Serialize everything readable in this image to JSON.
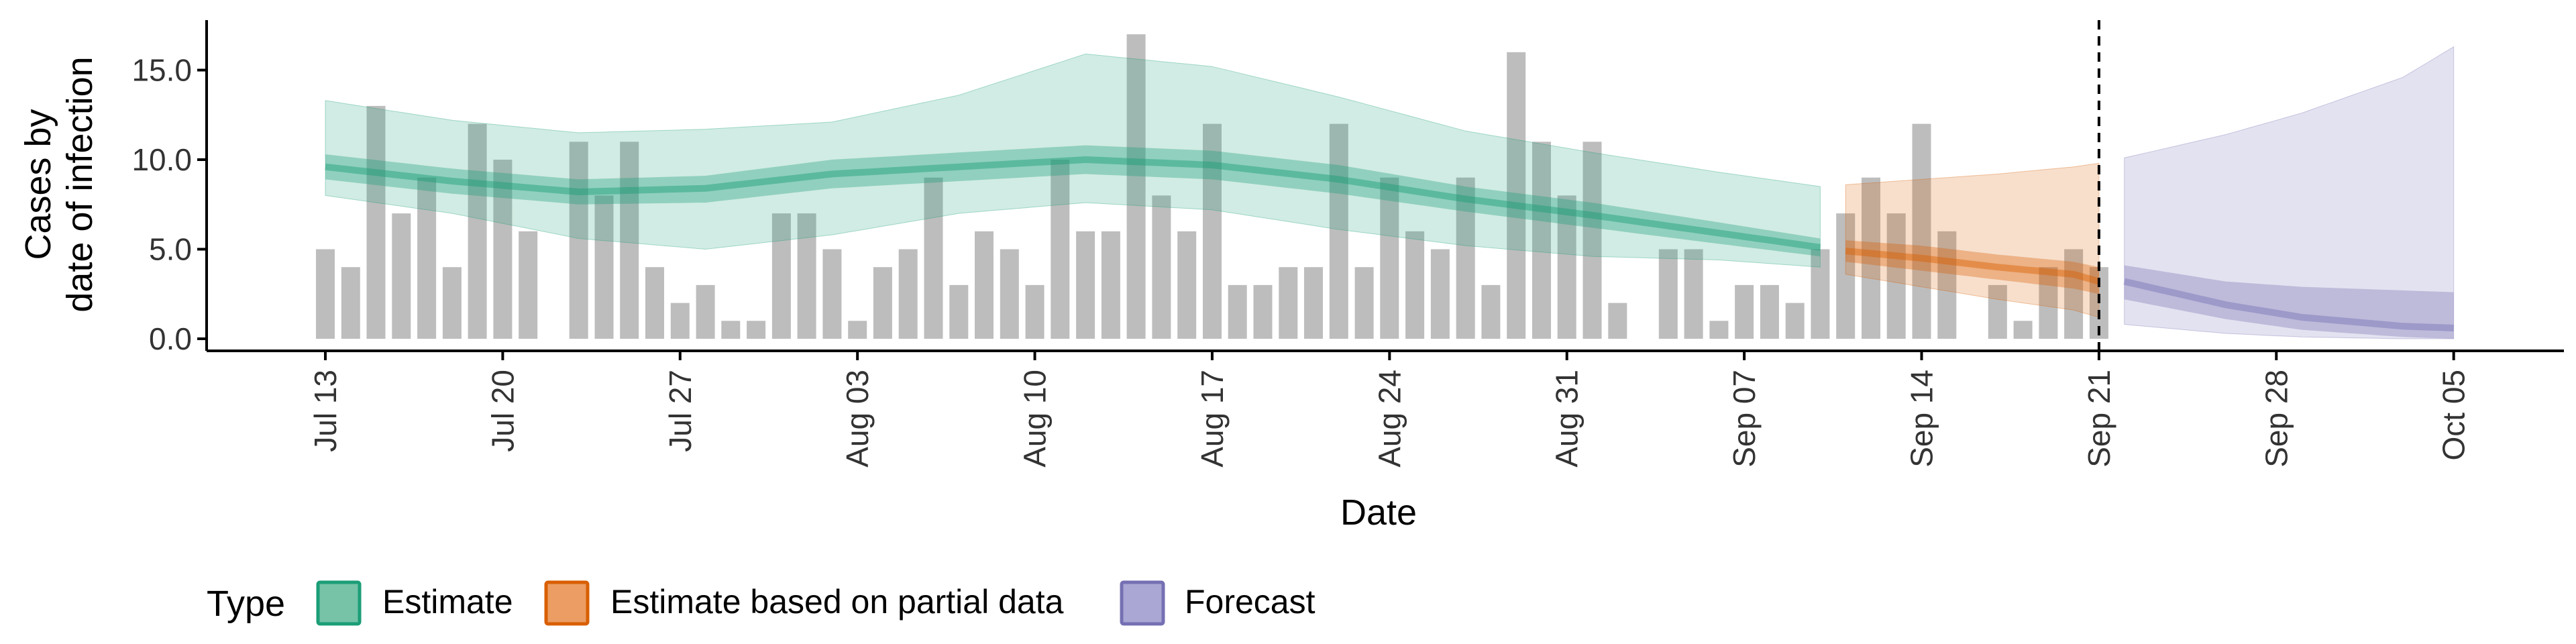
{
  "chart_data": {
    "type": "bar",
    "title": "",
    "xlabel": "Date",
    "ylabel_lines": [
      "Cases by",
      "date of infection"
    ],
    "ylim": [
      0,
      17.5
    ],
    "y_ticks": [
      0,
      5,
      10,
      15
    ],
    "y_tick_labels": [
      "0.0",
      "5.0",
      "10.0",
      "15.0"
    ],
    "x_start": "2020-07-13",
    "x_ticks": [
      "2020-07-13",
      "2020-07-20",
      "2020-07-27",
      "2020-08-03",
      "2020-08-10",
      "2020-08-17",
      "2020-08-24",
      "2020-08-31",
      "2020-09-07",
      "2020-09-14",
      "2020-09-21",
      "2020-09-28",
      "2020-10-05"
    ],
    "x_tick_labels": [
      "Jul 13",
      "Jul 20",
      "Jul 27",
      "Aug 03",
      "Aug 10",
      "Aug 17",
      "Aug 24",
      "Aug 31",
      "Sep 07",
      "Sep 14",
      "Sep 21",
      "Sep 28",
      "Oct 05"
    ],
    "vline_date": "2020-09-21",
    "grid": false,
    "legend": {
      "title": "Type",
      "position": "bottom-left",
      "entries": [
        "Estimate",
        "Estimate based on partial data",
        "Forecast"
      ]
    },
    "colors": {
      "bars": "#bdbdbd",
      "Estimate": "#1b9e77",
      "Estimate_key_fill": "#76c3a8",
      "Estimate based on partial data": "#d95f02",
      "Estimate based on partial data_key_fill": "#eb9d63",
      "Forecast": "#7570b3",
      "Forecast_key_fill": "#aaa7d4"
    },
    "observed_cases": [
      5,
      4,
      13,
      7,
      9,
      4,
      12,
      10,
      6,
      0,
      11,
      8,
      11,
      4,
      2,
      3,
      1,
      1,
      7,
      7,
      5,
      1,
      4,
      5,
      9,
      3,
      6,
      5,
      3,
      10,
      6,
      6,
      17,
      8,
      6,
      12,
      3,
      3,
      4,
      4,
      12,
      4,
      9,
      6,
      5,
      9,
      3,
      16,
      11,
      8,
      11,
      2,
      0,
      5,
      5,
      1,
      3,
      3,
      2,
      5,
      7,
      9,
      7,
      12,
      6,
      0,
      3,
      1,
      4,
      5,
      4
    ],
    "series": [
      {
        "name": "Estimate",
        "start": "2020-07-13",
        "end": "2020-09-10",
        "knot_days": [
          0,
          5,
          10,
          15,
          20,
          25,
          30,
          35,
          40,
          45,
          50,
          55,
          59
        ],
        "median": [
          9.6,
          8.8,
          8.2,
          8.4,
          9.2,
          9.6,
          10.0,
          9.7,
          8.9,
          7.8,
          6.9,
          5.9,
          5.1
        ],
        "lower_50": [
          8.9,
          8.1,
          7.5,
          7.6,
          8.4,
          8.8,
          9.2,
          8.9,
          8.1,
          7.1,
          6.2,
          5.3,
          4.6
        ],
        "upper_50": [
          10.3,
          9.5,
          8.9,
          9.1,
          10.0,
          10.4,
          10.8,
          10.5,
          9.7,
          8.5,
          7.6,
          6.5,
          5.6
        ],
        "lower_90": [
          8.0,
          7.0,
          5.6,
          5.0,
          5.8,
          7.0,
          7.6,
          7.2,
          6.1,
          5.2,
          4.6,
          4.4,
          4.0
        ],
        "upper_90": [
          13.3,
          12.2,
          11.5,
          11.7,
          12.1,
          13.6,
          15.9,
          15.2,
          13.5,
          11.6,
          10.4,
          9.3,
          8.5
        ]
      },
      {
        "name": "Estimate based on partial data",
        "start": "2020-09-11",
        "end": "2020-09-21",
        "knot_days": [
          0,
          3,
          6,
          9,
          10
        ],
        "median": [
          4.9,
          4.5,
          4.0,
          3.6,
          3.2
        ],
        "lower_50": [
          4.3,
          3.8,
          3.3,
          2.8,
          2.5
        ],
        "upper_50": [
          5.5,
          5.2,
          4.7,
          4.3,
          4.0
        ],
        "lower_90": [
          3.6,
          2.9,
          2.2,
          1.6,
          1.2
        ],
        "upper_90": [
          8.6,
          8.9,
          9.2,
          9.6,
          9.8
        ]
      },
      {
        "name": "Forecast",
        "start": "2020-09-22",
        "end": "2020-10-05",
        "knot_days": [
          0,
          4,
          7,
          11,
          13
        ],
        "median": [
          3.2,
          1.9,
          1.2,
          0.7,
          0.6
        ],
        "lower_50": [
          2.2,
          1.1,
          0.5,
          0.1,
          0.0
        ],
        "upper_50": [
          4.1,
          3.2,
          2.9,
          2.7,
          2.6
        ],
        "lower_90": [
          0.8,
          0.3,
          0.1,
          0.0,
          0.0
        ],
        "upper_90": [
          10.1,
          11.4,
          12.6,
          14.6,
          16.3
        ]
      }
    ]
  }
}
